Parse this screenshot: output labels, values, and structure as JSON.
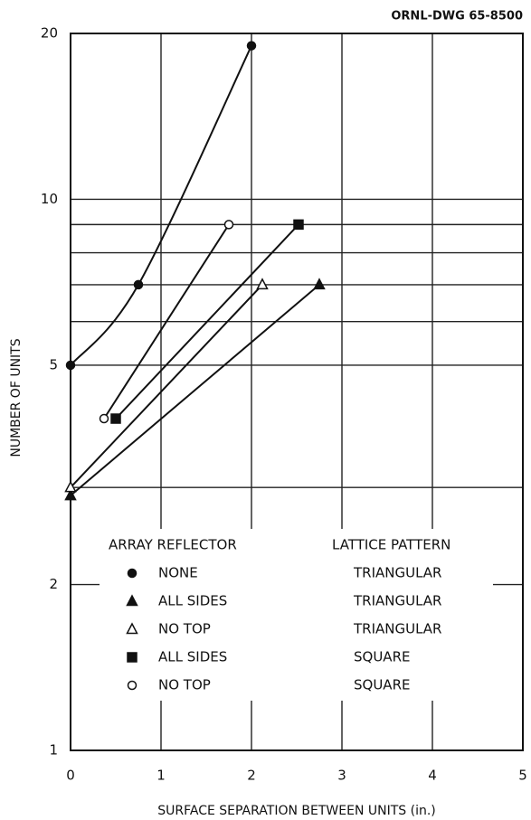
{
  "chart_data": {
    "type": "line",
    "annotation": "ORNL-DWG 65-8500",
    "xlabel": "SURFACE SEPARATION BETWEEN UNITS (in.)",
    "ylabel": "NUMBER OF UNITS",
    "xlim": [
      0,
      5
    ],
    "xticks": [
      0,
      1,
      2,
      3,
      4,
      5
    ],
    "ylim": [
      1,
      20
    ],
    "yticks": [
      1,
      2,
      5,
      10,
      20
    ],
    "ygrid": [
      2,
      3,
      5,
      6,
      7,
      8,
      9,
      10,
      20
    ],
    "log_y": true,
    "grid": true,
    "legend_headers": [
      "ARRAY REFLECTOR",
      "LATTICE PATTERN"
    ],
    "legend": "lower right",
    "series": [
      {
        "name": "NONE",
        "lattice": "TRIANGULAR",
        "marker": "filled-circle",
        "color": "#111111",
        "x": [
          0,
          0.75,
          2
        ],
        "values": [
          5,
          7,
          19
        ]
      },
      {
        "name": "ALL SIDES",
        "lattice": "TRIANGULAR",
        "marker": "filled-triangle",
        "color": "#111111",
        "x": [
          0,
          2.75
        ],
        "values": [
          2.9,
          7
        ]
      },
      {
        "name": "NO TOP",
        "lattice": "TRIANGULAR",
        "marker": "open-triangle",
        "color": "#111111",
        "x": [
          0,
          2.12
        ],
        "values": [
          3,
          7
        ]
      },
      {
        "name": "ALL SIDES",
        "lattice": "SQUARE",
        "marker": "filled-square",
        "color": "#111111",
        "x": [
          0.5,
          2.52
        ],
        "values": [
          4,
          9
        ]
      },
      {
        "name": "NO TOP",
        "lattice": "SQUARE",
        "marker": "open-circle",
        "color": "#111111",
        "x": [
          0.37,
          1.75
        ],
        "values": [
          4,
          9
        ]
      }
    ]
  }
}
